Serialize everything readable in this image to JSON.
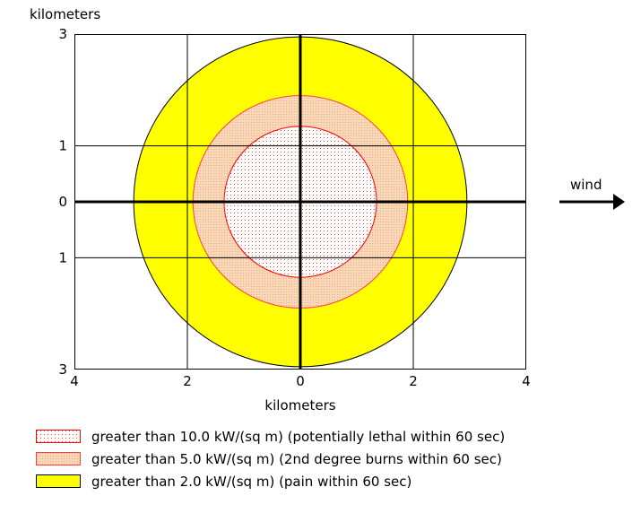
{
  "chart_data": {
    "type": "threat_zone_plot",
    "xlabel": "kilometers",
    "ylabel": "kilometers",
    "xlim": [
      -4,
      4
    ],
    "ylim": [
      -3,
      3
    ],
    "x_tick_labels": [
      {
        "value": -4,
        "label": "4"
      },
      {
        "value": -2,
        "label": "2"
      },
      {
        "value": 0,
        "label": "0"
      },
      {
        "value": 2,
        "label": "2"
      },
      {
        "value": 4,
        "label": "4"
      }
    ],
    "y_tick_labels": [
      {
        "value": 3,
        "label": "3"
      },
      {
        "value": 1,
        "label": "1"
      },
      {
        "value": 0,
        "label": "0"
      },
      {
        "value": -1,
        "label": "1"
      },
      {
        "value": -3,
        "label": "3"
      }
    ],
    "grid": true,
    "wind_label": "wind",
    "wind_direction": "right",
    "zones": [
      {
        "label": "greater than 2.0 kW/(sq m) (pain within 60 sec)",
        "radius_km": 2.95,
        "fill": "#ffff00",
        "stroke": "#000000",
        "pattern": "solid"
      },
      {
        "label": "greater than 5.0 kW/(sq m) (2nd degree burns within 60 sec)",
        "radius_km": 1.9,
        "fill": "#f9d9b3",
        "stroke": "#ff4040",
        "pattern": "dotted"
      },
      {
        "label": "greater than 10.0 kW/(sq m) (potentially lethal within 60 sec)",
        "radius_km": 1.35,
        "fill": "#ffffff",
        "stroke": "#ff0000",
        "pattern": "dotted"
      }
    ]
  },
  "legend": [
    {
      "label": "greater than 10.0 kW/(sq m) (potentially lethal within 60 sec)",
      "swatch": "lethal"
    },
    {
      "label": "greater than 5.0 kW/(sq m) (2nd degree burns within 60 sec)",
      "swatch": "burns"
    },
    {
      "label": "greater than 2.0 kW/(sq m) (pain within 60 sec)",
      "swatch": "pain"
    }
  ],
  "colors": {
    "pain": "#ffff00",
    "burns_fill": "#f9d9b3",
    "burns_dots": "#f3a0a0",
    "lethal_fill": "#ffffff",
    "lethal_dots": "#ff4040",
    "red_outline": "#ff0000"
  }
}
